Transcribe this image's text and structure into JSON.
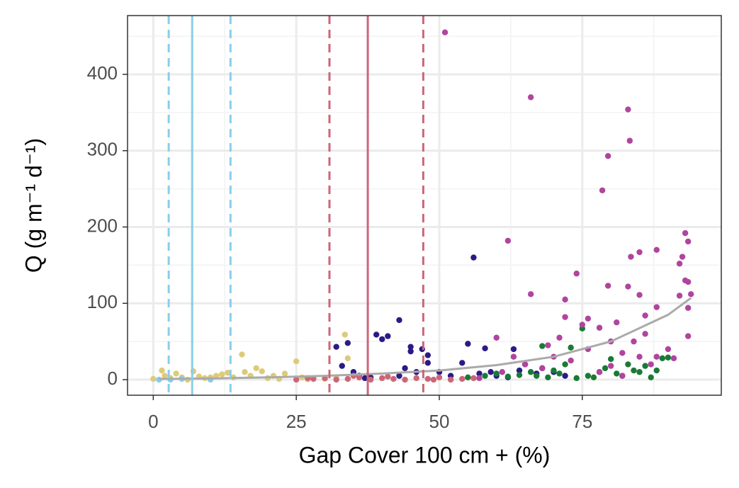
{
  "chart_data": {
    "type": "scatter",
    "xlabel": "Gap Cover 100 cm + (%)",
    "ylabel": "Q (g m⁻¹ d⁻¹)",
    "xlim": [
      -4.5,
      99.3
    ],
    "ylim": [
      -20.4,
      477
    ],
    "xticks": [
      0,
      25,
      50,
      75
    ],
    "yticks": [
      0,
      100,
      200,
      300,
      400
    ],
    "xminor": [
      12.5,
      37.5,
      62.5,
      87.5
    ],
    "yminor": [
      50,
      150,
      250,
      350,
      450
    ],
    "grid": true,
    "series": [
      {
        "color": "#dccb7a",
        "x": [
          0,
          1.5,
          2,
          3,
          4,
          5,
          6,
          7,
          8,
          9,
          10,
          11,
          12,
          13,
          14,
          15.5,
          16,
          17,
          18,
          19,
          20,
          21,
          22,
          23,
          25,
          26,
          27,
          28,
          30,
          32,
          33.5,
          34
        ],
        "values": [
          1,
          12,
          5,
          2,
          8,
          3,
          0,
          11,
          4,
          2,
          3,
          5,
          7,
          9,
          3,
          33,
          10,
          5,
          15,
          11,
          2,
          5,
          1,
          8,
          24,
          3,
          0.5,
          2,
          1,
          3,
          59,
          28
        ]
      },
      {
        "color": "#87ceeb",
        "x": [
          1,
          3,
          5,
          10
        ],
        "values": [
          0,
          0,
          1,
          0
        ]
      },
      {
        "color": "#2b1a86",
        "x": [
          32,
          33,
          34,
          35,
          36,
          37,
          38,
          39,
          40,
          41,
          43,
          43,
          44,
          45,
          45,
          46,
          47,
          48,
          48,
          50,
          52,
          54,
          55,
          56,
          57,
          58,
          59,
          60,
          62,
          63,
          64,
          65,
          67,
          68,
          70,
          72
        ],
        "values": [
          43,
          18,
          48,
          10,
          5,
          2,
          3,
          59,
          53,
          57,
          78,
          5,
          15,
          43,
          37,
          10,
          40,
          32,
          22,
          10,
          5,
          22,
          47,
          160,
          8,
          41,
          10,
          5,
          3,
          40,
          12,
          20,
          8,
          15,
          10,
          5
        ]
      },
      {
        "color": "#cc6677",
        "x": [
          25,
          27,
          28,
          30,
          32,
          34,
          35,
          36,
          38,
          40,
          41,
          42,
          44,
          46,
          48,
          49,
          50,
          52,
          54,
          56
        ],
        "values": [
          0,
          2,
          1,
          2,
          0,
          1,
          5,
          3,
          0,
          2,
          4,
          1,
          0,
          2,
          1,
          0,
          3,
          0,
          1,
          2
        ]
      },
      {
        "color": "#1a7a35",
        "x": [
          55,
          58,
          60,
          62,
          64,
          66,
          67,
          68,
          69,
          70,
          71,
          72,
          73,
          74,
          75,
          76,
          77,
          78,
          79,
          80,
          81,
          82,
          83,
          84,
          85,
          86,
          87,
          88,
          89,
          90
        ],
        "values": [
          3,
          5,
          8,
          4,
          6,
          10,
          5,
          44,
          3,
          12,
          8,
          20,
          42,
          2,
          67,
          5,
          3,
          10,
          15,
          27,
          8,
          5,
          20,
          12,
          10,
          18,
          3,
          12,
          28,
          29
        ]
      },
      {
        "color": "#b0449e",
        "x": [
          51,
          66,
          62,
          66,
          83,
          83.3,
          79.5,
          78.5,
          83.5,
          85,
          88,
          79.5,
          83,
          85,
          93,
          93.5,
          92.5,
          92,
          93,
          93.5,
          94,
          92,
          93.5,
          93.5,
          74,
          72,
          72,
          76,
          78,
          81,
          86,
          88,
          86,
          84,
          75,
          71,
          69,
          70,
          73,
          76,
          80,
          82,
          85,
          88,
          87,
          60,
          63,
          65,
          68,
          78,
          80,
          82,
          90,
          91,
          57,
          61
        ],
        "values": [
          455,
          370,
          182,
          112,
          354,
          313,
          293,
          248,
          161,
          167,
          170,
          123,
          122,
          111,
          192,
          181,
          161,
          152,
          130,
          128,
          112,
          110,
          94,
          57,
          139,
          105,
          82,
          80,
          68,
          75,
          84,
          95,
          60,
          50,
          72,
          55,
          45,
          30,
          25,
          40,
          50,
          35,
          30,
          30,
          20,
          55,
          30,
          20,
          15,
          10,
          18,
          5,
          40,
          28,
          2,
          10
        ]
      }
    ],
    "fit": {
      "color": "#aaaaaa",
      "x": [
        1,
        10,
        20,
        30,
        40,
        50,
        60,
        70,
        80,
        90,
        94
      ],
      "values": [
        1,
        1.5,
        3,
        5,
        8,
        12,
        19,
        30,
        50,
        85,
        107
      ]
    },
    "vlines": [
      {
        "x": 6.8,
        "color": "#87ceeb",
        "dashed": false
      },
      {
        "x": 2.7,
        "color": "#87ceeb",
        "dashed": true
      },
      {
        "x": 13.5,
        "color": "#87ceeb",
        "dashed": true
      },
      {
        "x": 37.5,
        "color": "#cc6677",
        "dashed": false
      },
      {
        "x": 30.8,
        "color": "#cc6677",
        "dashed": true
      },
      {
        "x": 47.2,
        "color": "#cc6677",
        "dashed": true
      }
    ]
  }
}
